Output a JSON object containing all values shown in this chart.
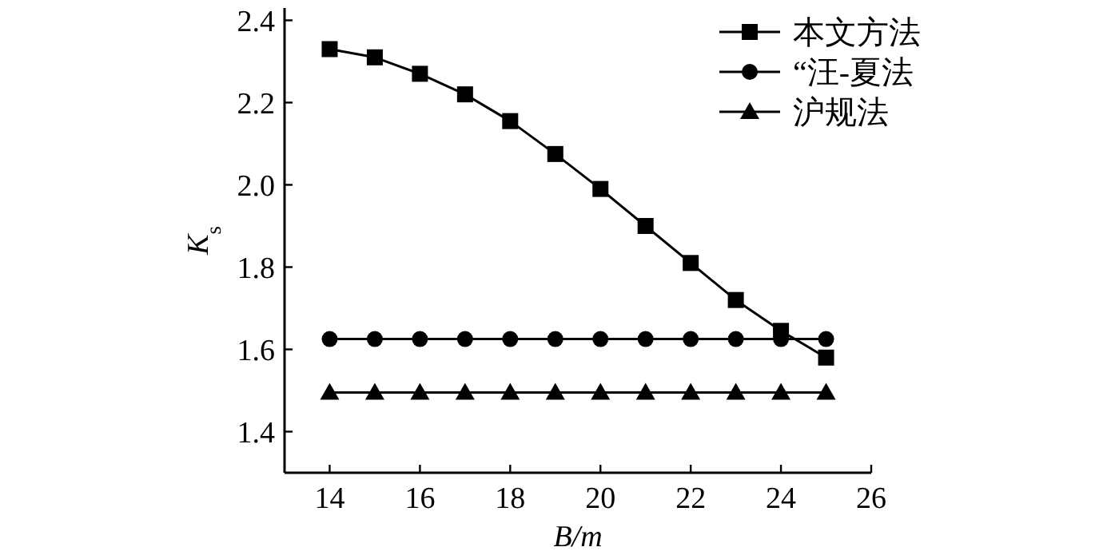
{
  "chart_data": {
    "type": "line",
    "xlabel": "B/m",
    "ylabel": "K$_{s}$",
    "x": [
      14,
      15,
      16,
      17,
      18,
      19,
      20,
      21,
      22,
      23,
      24,
      25
    ],
    "xlim": [
      13,
      26
    ],
    "xticks": [
      14,
      16,
      18,
      20,
      22,
      24,
      26
    ],
    "ylim": [
      1.3,
      2.43
    ],
    "yticks": [
      {
        "value": 1.4,
        "label": "1.4"
      },
      {
        "value": 1.6,
        "label": "1.6"
      },
      {
        "value": 1.8,
        "label": "1.8"
      },
      {
        "value": 2.0,
        "label": "2.0"
      },
      {
        "value": 2.2,
        "label": "2.2"
      },
      {
        "value": 2.4,
        "label": "2.4"
      }
    ],
    "legend": "top right",
    "line_style": "solid",
    "series": [
      {
        "name": "本文方法",
        "color": "#000000",
        "marker": "square",
        "values": [
          2.33,
          2.31,
          2.27,
          2.22,
          2.155,
          2.075,
          1.99,
          1.9,
          1.81,
          1.72,
          1.645,
          1.58
        ]
      },
      {
        "name": "“汪-夏法",
        "color": "#000000",
        "marker": "circle",
        "values": [
          1.625,
          1.625,
          1.625,
          1.625,
          1.625,
          1.625,
          1.625,
          1.625,
          1.625,
          1.625,
          1.625,
          1.625
        ]
      },
      {
        "name": "沪规法",
        "color": "#000000",
        "marker": "triangle",
        "values": [
          1.495,
          1.495,
          1.495,
          1.495,
          1.495,
          1.495,
          1.495,
          1.495,
          1.495,
          1.495,
          1.495,
          1.495
        ]
      }
    ]
  }
}
